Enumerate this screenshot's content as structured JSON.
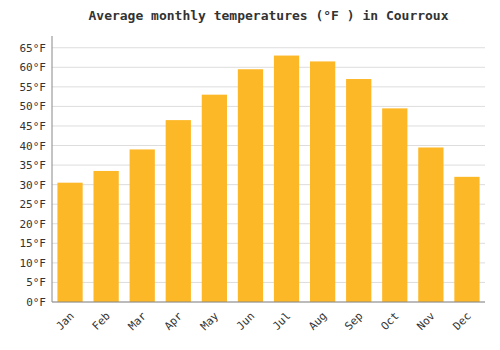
{
  "chart_data": {
    "type": "bar",
    "title": "Average monthly temperatures (°F ) in Courroux",
    "categories": [
      "Jan",
      "Feb",
      "Mar",
      "Apr",
      "May",
      "Jun",
      "Jul",
      "Aug",
      "Sep",
      "Oct",
      "Nov",
      "Dec"
    ],
    "values": [
      30.5,
      33.5,
      39.0,
      46.5,
      53.0,
      59.5,
      63.0,
      61.5,
      57.0,
      49.5,
      39.5,
      32.0
    ],
    "color": "#FDB827",
    "ylim": [
      0,
      68
    ],
    "yticks": [
      {
        "value": 0,
        "label": "0°F"
      },
      {
        "value": 5,
        "label": "5°F"
      },
      {
        "value": 10,
        "label": "10°F"
      },
      {
        "value": 15,
        "label": "15°F"
      },
      {
        "value": 20,
        "label": "20°F"
      },
      {
        "value": 25,
        "label": "25°F"
      },
      {
        "value": 30,
        "label": "30°F"
      },
      {
        "value": 35,
        "label": "35°F"
      },
      {
        "value": 40,
        "label": "40°F"
      },
      {
        "value": 45,
        "label": "45°F"
      },
      {
        "value": 50,
        "label": "50°F"
      },
      {
        "value": 55,
        "label": "55°F"
      },
      {
        "value": 60,
        "label": "60°F"
      },
      {
        "value": 65,
        "label": "65°F"
      }
    ],
    "grid": true
  }
}
